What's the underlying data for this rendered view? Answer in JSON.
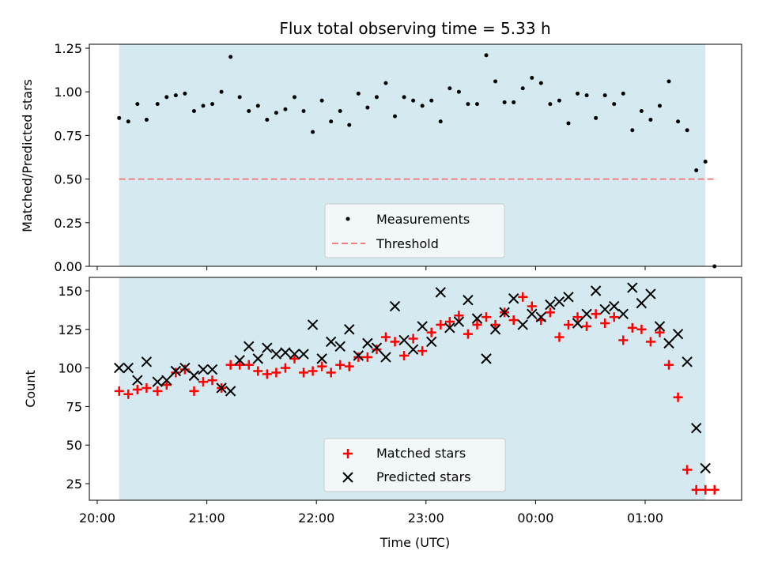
{
  "chart_data": [
    {
      "type": "scatter",
      "title": "Flux total observing time = 5.33 h",
      "xlabel": "",
      "ylabel": "Matched/Predicted stars",
      "ylim": [
        0,
        1.27
      ],
      "yticks": [
        "0.00",
        "0.25",
        "0.50",
        "0.75",
        "1.00",
        "1.25"
      ],
      "legend": {
        "placement": "lower-center",
        "entries": [
          "Measurements",
          "Threshold"
        ]
      },
      "colors": {
        "shade": "#d4eaf0",
        "measurements": "#000000",
        "threshold": "#f08080"
      },
      "threshold": 0.5,
      "series": [
        {
          "name": "Measurements",
          "x": [
            "20:12",
            "20:17",
            "20:22",
            "20:27",
            "20:33",
            "20:38",
            "20:43",
            "20:48",
            "20:53",
            "20:58",
            "21:03",
            "21:08",
            "21:13",
            "21:18",
            "21:23",
            "21:28",
            "21:33",
            "21:38",
            "21:43",
            "21:48",
            "21:53",
            "21:58",
            "22:03",
            "22:08",
            "22:13",
            "22:18",
            "22:23",
            "22:28",
            "22:33",
            "22:38",
            "22:43",
            "22:48",
            "22:53",
            "22:58",
            "23:03",
            "23:08",
            "23:13",
            "23:18",
            "23:23",
            "23:28",
            "23:33",
            "23:38",
            "23:43",
            "23:48",
            "23:53",
            "23:58",
            "00:03",
            "00:08",
            "00:13",
            "00:18",
            "00:23",
            "00:28",
            "00:33",
            "00:38",
            "00:43",
            "00:48",
            "00:53",
            "00:58",
            "01:03",
            "01:08",
            "01:13",
            "01:18",
            "01:23",
            "01:28",
            "01:33",
            "01:38"
          ],
          "values": [
            0.85,
            0.83,
            0.93,
            0.84,
            0.93,
            0.97,
            0.98,
            0.99,
            0.89,
            0.92,
            0.93,
            1.0,
            1.2,
            0.97,
            0.89,
            0.92,
            0.84,
            0.88,
            0.9,
            0.97,
            0.89,
            0.77,
            0.95,
            0.83,
            0.89,
            0.81,
            0.99,
            0.91,
            0.97,
            1.05,
            0.86,
            0.97,
            0.95,
            0.92,
            0.95,
            0.83,
            1.02,
            1.0,
            0.93,
            0.93,
            1.21,
            1.06,
            0.94,
            0.94,
            1.02,
            1.08,
            1.05,
            0.93,
            0.95,
            0.82,
            0.99,
            0.98,
            0.85,
            0.98,
            0.93,
            0.99,
            0.78,
            0.89,
            0.84,
            0.92,
            1.06,
            0.83,
            0.78,
            0.55,
            0.6,
            0.0
          ]
        }
      ]
    },
    {
      "type": "scatter",
      "title": "",
      "xlabel": "Time (UTC)",
      "ylabel": "Count",
      "xlim": [
        "20:00",
        "01:55"
      ],
      "ylim": [
        15,
        160
      ],
      "xticks": [
        "20:00",
        "21:00",
        "22:00",
        "23:00",
        "00:00",
        "01:00"
      ],
      "yticks": [
        "25",
        "50",
        "75",
        "100",
        "125",
        "150"
      ],
      "legend": {
        "placement": "lower-center",
        "entries": [
          "Matched stars",
          "Predicted stars"
        ]
      },
      "colors": {
        "shade": "#d4eaf0",
        "matched": "#ff0000",
        "predicted": "#000000"
      },
      "observing_window": [
        "20:12",
        "01:33"
      ],
      "series": [
        {
          "name": "Matched stars",
          "x": [
            "20:12",
            "20:17",
            "20:22",
            "20:27",
            "20:33",
            "20:38",
            "20:43",
            "20:48",
            "20:53",
            "20:58",
            "21:03",
            "21:08",
            "21:13",
            "21:18",
            "21:23",
            "21:28",
            "21:33",
            "21:38",
            "21:43",
            "21:48",
            "21:53",
            "21:58",
            "22:03",
            "22:08",
            "22:13",
            "22:18",
            "22:23",
            "22:28",
            "22:33",
            "22:38",
            "22:43",
            "22:48",
            "22:53",
            "22:58",
            "23:03",
            "23:08",
            "23:13",
            "23:18",
            "23:23",
            "23:28",
            "23:33",
            "23:38",
            "23:43",
            "23:48",
            "23:53",
            "23:58",
            "00:03",
            "00:08",
            "00:13",
            "00:18",
            "00:23",
            "00:28",
            "00:33",
            "00:38",
            "00:43",
            "00:48",
            "00:53",
            "00:58",
            "01:03",
            "01:08",
            "01:13",
            "01:18",
            "01:23",
            "01:28",
            "01:33",
            "01:38"
          ],
          "values": [
            85,
            83,
            86,
            87,
            85,
            89,
            97,
            99,
            85,
            91,
            92,
            87,
            102,
            102,
            102,
            98,
            96,
            97,
            100,
            106,
            97,
            98,
            101,
            97,
            102,
            101,
            107,
            107,
            112,
            120,
            117,
            108,
            119,
            111,
            123,
            128,
            130,
            134,
            122,
            128,
            133,
            128,
            136,
            131,
            146,
            140,
            131,
            136,
            120,
            128,
            133,
            127,
            135,
            129,
            133,
            118,
            126,
            125,
            117,
            123,
            102,
            81,
            34,
            21,
            21,
            21
          ],
          "x_last_two": [
            "01:33",
            "01:38"
          ]
        },
        {
          "name": "Predicted stars",
          "x": [
            "20:12",
            "20:17",
            "20:22",
            "20:27",
            "20:33",
            "20:38",
            "20:43",
            "20:48",
            "20:53",
            "20:58",
            "21:03",
            "21:08",
            "21:13",
            "21:18",
            "21:23",
            "21:28",
            "21:33",
            "21:38",
            "21:43",
            "21:48",
            "21:53",
            "21:58",
            "22:03",
            "22:08",
            "22:13",
            "22:18",
            "22:23",
            "22:28",
            "22:33",
            "22:38",
            "22:43",
            "22:48",
            "22:53",
            "22:58",
            "23:03",
            "23:08",
            "23:13",
            "23:18",
            "23:23",
            "23:28",
            "23:33",
            "23:38",
            "23:43",
            "23:48",
            "23:53",
            "23:58",
            "00:03",
            "00:08",
            "00:13",
            "00:18",
            "00:23",
            "00:28",
            "00:33",
            "00:38",
            "00:43",
            "00:48",
            "00:53",
            "00:58",
            "01:03",
            "01:08",
            "01:13",
            "01:18",
            "01:23",
            "01:28",
            "01:33"
          ],
          "values": [
            100,
            100,
            92,
            104,
            91,
            92,
            98,
            100,
            95,
            99,
            99,
            87,
            85,
            105,
            114,
            106,
            113,
            109,
            110,
            109,
            109,
            128,
            106,
            117,
            114,
            125,
            108,
            116,
            113,
            107,
            140,
            118,
            112,
            127,
            117,
            149,
            126,
            130,
            144,
            132,
            106,
            125,
            136,
            145,
            128,
            135,
            133,
            141,
            143,
            146,
            129,
            135,
            150,
            138,
            140,
            135,
            152,
            142,
            148,
            127,
            116,
            122,
            104,
            61,
            35
          ]
        }
      ]
    }
  ]
}
